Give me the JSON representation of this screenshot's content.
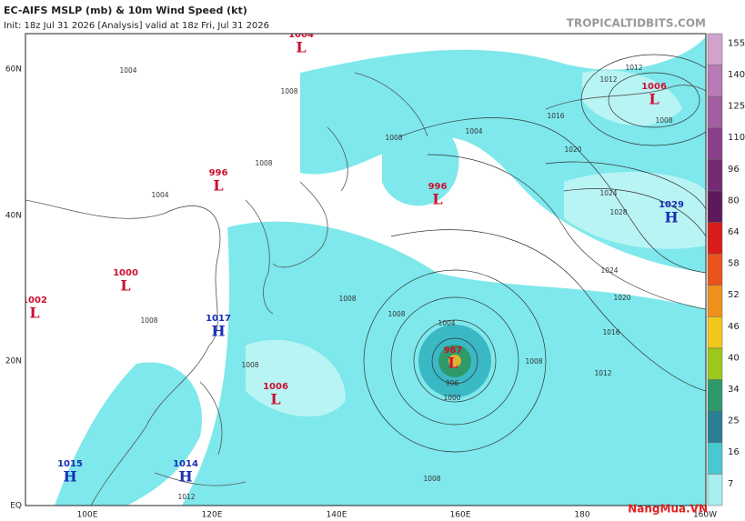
{
  "header": {
    "title": "EC-AIFS MSLP (mb) & 10m Wind Speed (kt)",
    "init": "Init: 18z Jul 31 2026   [Analysis]   valid at 18z Fri, Jul 31 2026",
    "site": "TROPICALTIDBITS.COM"
  },
  "lat_labels": [
    "60N",
    "40N",
    "20N",
    "EQ"
  ],
  "lon_labels": [
    "100E",
    "120E",
    "140E",
    "160E",
    "180",
    "160W"
  ],
  "centers": [
    {
      "pressure": "1004",
      "letter": "L"
    },
    {
      "pressure": "996",
      "letter": "L"
    },
    {
      "pressure": "1000",
      "letter": "L"
    },
    {
      "pressure": "1002",
      "letter": "L"
    },
    {
      "pressure": "1017",
      "letter": "H"
    },
    {
      "pressure": "1006",
      "letter": "L"
    },
    {
      "pressure": "1015",
      "letter": "H"
    },
    {
      "pressure": "1014",
      "letter": "H"
    },
    {
      "pressure": "996",
      "letter": "L"
    },
    {
      "pressure": "987",
      "letter": "L"
    },
    {
      "pressure": "1006",
      "letter": "L"
    },
    {
      "pressure": "1029",
      "letter": "H"
    }
  ],
  "isobar_labels": [
    "1004",
    "1008",
    "1004",
    "1008",
    "1016",
    "1020",
    "1024",
    "1028",
    "1024",
    "1020",
    "1016",
    "1012",
    "1008",
    "1004",
    "1000",
    "996",
    "1008",
    "1008",
    "1008",
    "1008",
    "1012",
    "1012",
    "1008",
    "1008",
    "1004",
    "1008",
    "1012"
  ],
  "colorbar": [
    155,
    140,
    125,
    110,
    96,
    80,
    64,
    58,
    52,
    46,
    40,
    34,
    25,
    16,
    7
  ],
  "watermark": "NangMua.VN"
}
